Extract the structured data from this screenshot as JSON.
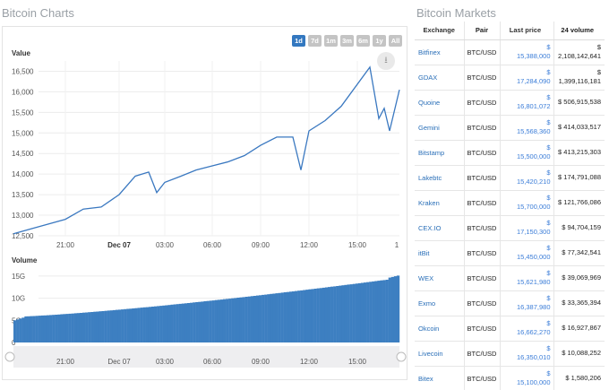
{
  "charts": {
    "heading": "Bitcoin Charts",
    "ranges": [
      "1d",
      "7d",
      "1m",
      "3m",
      "6m",
      "1y",
      "All"
    ],
    "active_range": "1d",
    "download_icon": "download-icon",
    "value_label": "Value",
    "volume_label": "Volume",
    "y_ticks": [
      "16,500",
      "16,000",
      "15,500",
      "15,000",
      "14,500",
      "14,000",
      "13,500",
      "13,000",
      "12,500"
    ],
    "x_ticks": [
      "21:00",
      "Dec 07",
      "03:00",
      "06:00",
      "09:00",
      "12:00",
      "15:00",
      "1"
    ],
    "vol_ticks": [
      "15G",
      "10G",
      "5G",
      "0"
    ],
    "nav_ticks": [
      "21:00",
      "Dec 07",
      "03:00",
      "06:00",
      "09:00",
      "12:00",
      "15:00"
    ],
    "colors": {
      "line": "#3a78c0",
      "bars": "#3d7fc1",
      "active_range": "#3378c0"
    }
  },
  "chart_data": {
    "type": "line",
    "title": "Bitcoin Charts",
    "ylabel": "Value",
    "ylim": [
      12500,
      16750
    ],
    "x": [
      "20:00",
      "21:00",
      "22:00",
      "23:00",
      "00:00",
      "01:00",
      "02:00",
      "02:30",
      "03:00",
      "04:00",
      "05:00",
      "06:00",
      "07:00",
      "08:00",
      "09:00",
      "10:00",
      "11:00",
      "11:30",
      "12:00",
      "13:00",
      "14:00",
      "14:45",
      "15:10",
      "15:30",
      "16:00",
      "16:20"
    ],
    "series": [
      {
        "values": [
          12550,
          12900,
          13150,
          13200,
          13500,
          13950,
          14050,
          13550,
          13800,
          13950,
          14100,
          14200,
          14300,
          14450,
          14700,
          14900,
          14900,
          14100,
          15050,
          15300,
          15650,
          16600,
          15350,
          15600,
          15050,
          16050
        ]
      }
    ],
    "volume": {
      "ylabel": "Volume",
      "ylim": [
        0,
        17
      ],
      "start": 5.8,
      "end": 14.5
    }
  },
  "markets": {
    "heading": "Bitcoin Markets",
    "columns": [
      "Exchange",
      "Pair",
      "Last price",
      "24 volume"
    ],
    "rows": [
      {
        "exchange": "Bitfinex",
        "pair": "BTC/USD",
        "price_sym": "$",
        "price": "15,388,000",
        "vol_sym": "$",
        "volume": "2,108,142,641"
      },
      {
        "exchange": "GDAX",
        "pair": "BTC/USD",
        "price_sym": "$",
        "price": "17,284,090",
        "vol_sym": "$",
        "volume": "1,399,116,181"
      },
      {
        "exchange": "Quoine",
        "pair": "BTC/USD",
        "price_sym": "$",
        "price": "16,801,072",
        "vol_sym": "$",
        "volume": "506,915,538"
      },
      {
        "exchange": "Gemini",
        "pair": "BTC/USD",
        "price_sym": "$",
        "price": "15,568,360",
        "vol_sym": "$",
        "volume": "414,033,517"
      },
      {
        "exchange": "Bitstamp",
        "pair": "BTC/USD",
        "price_sym": "$",
        "price": "15,500,000",
        "vol_sym": "$",
        "volume": "413,215,303"
      },
      {
        "exchange": "Lakebtc",
        "pair": "BTC/USD",
        "price_sym": "$",
        "price": "15,420,210",
        "vol_sym": "$",
        "volume": "174,791,088"
      },
      {
        "exchange": "Kraken",
        "pair": "BTC/USD",
        "price_sym": "$",
        "price": "15,700,000",
        "vol_sym": "$",
        "volume": "121,766,086"
      },
      {
        "exchange": "CEX.IO",
        "pair": "BTC/USD",
        "price_sym": "$",
        "price": "17,150,300",
        "vol_sym": "$",
        "volume": "94,704,159"
      },
      {
        "exchange": "itBit",
        "pair": "BTC/USD",
        "price_sym": "$",
        "price": "15,450,000",
        "vol_sym": "$",
        "volume": "77,342,541"
      },
      {
        "exchange": "WEX",
        "pair": "BTC/USD",
        "price_sym": "$",
        "price": "15,621,980",
        "vol_sym": "$",
        "volume": "39,069,969"
      },
      {
        "exchange": "Exmo",
        "pair": "BTC/USD",
        "price_sym": "$",
        "price": "16,387,980",
        "vol_sym": "$",
        "volume": "33,365,394"
      },
      {
        "exchange": "Okcoin",
        "pair": "BTC/USD",
        "price_sym": "$",
        "price": "16,662,270",
        "vol_sym": "$",
        "volume": "16,927,867"
      },
      {
        "exchange": "Livecoin",
        "pair": "BTC/USD",
        "price_sym": "$",
        "price": "16,350,010",
        "vol_sym": "$",
        "volume": "10,088,252"
      },
      {
        "exchange": "Bitex",
        "pair": "BTC/USD",
        "price_sym": "$",
        "price": "15,100,000",
        "vol_sym": "$",
        "volume": "1,580,206"
      }
    ]
  }
}
